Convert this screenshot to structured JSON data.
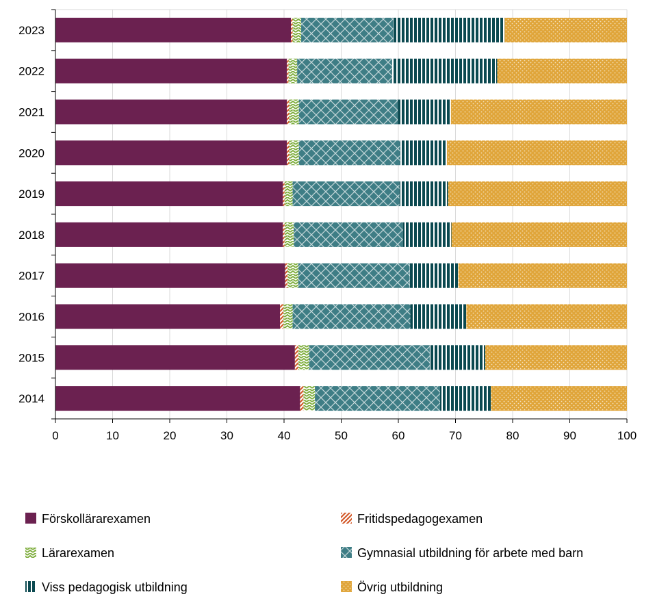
{
  "chart_data": {
    "type": "bar",
    "orientation": "horizontal",
    "stacked": true,
    "categories": [
      "2023",
      "2022",
      "2021",
      "2020",
      "2019",
      "2018",
      "2017",
      "2016",
      "2015",
      "2014"
    ],
    "series": [
      {
        "name": "Förskollärarexamen",
        "color": "#6b2150",
        "pattern": "solid",
        "values": [
          41.2,
          40.5,
          40.5,
          40.5,
          39.8,
          39.8,
          40.2,
          39.3,
          41.9,
          42.8
        ]
      },
      {
        "name": "Fritidspedagogexamen",
        "color": "#d35a2b",
        "pattern": "diagonal-stripes",
        "values": [
          0.3,
          0.3,
          0.4,
          0.4,
          0.3,
          0.3,
          0.4,
          0.6,
          0.6,
          0.6
        ]
      },
      {
        "name": "Lärarexamen",
        "color": "#7fae3e",
        "pattern": "zigzag",
        "values": [
          1.5,
          1.5,
          1.7,
          1.7,
          1.4,
          1.6,
          1.9,
          1.6,
          1.9,
          2.0
        ]
      },
      {
        "name": "Gymnasial utbildning för arbete med barn",
        "color": "#3e7d85",
        "pattern": "crosshatch",
        "values": [
          16.1,
          16.6,
          17.3,
          17.7,
          18.7,
          19.1,
          19.5,
          20.6,
          21.1,
          21.9
        ]
      },
      {
        "name": "Viss pedagogisk utbildning",
        "color": "#0b4950",
        "pattern": "vertical-stripes",
        "values": [
          19.5,
          18.4,
          9.3,
          8.2,
          8.5,
          8.5,
          8.5,
          9.8,
          9.7,
          8.9
        ]
      },
      {
        "name": "Övrig utbildning",
        "color": "#e0a53a",
        "pattern": "dots",
        "values": [
          21.4,
          22.7,
          30.8,
          31.5,
          31.3,
          30.7,
          29.5,
          28.1,
          24.8,
          23.8
        ]
      }
    ],
    "x_ticks": [
      "0",
      "10",
      "20",
      "30",
      "40",
      "50",
      "60",
      "70",
      "80",
      "90",
      "100"
    ],
    "xlim": [
      0,
      100
    ],
    "grid": "vertical",
    "legend_position": "bottom",
    "title": "",
    "xlabel": "",
    "ylabel": ""
  }
}
